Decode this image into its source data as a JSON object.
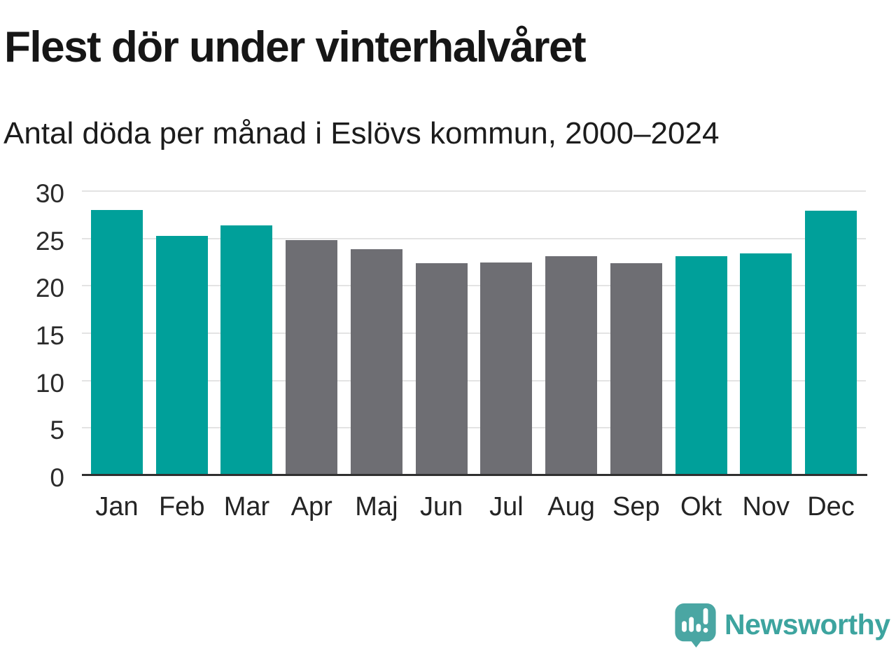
{
  "header": {
    "title": "Flest dör under vinterhalvåret",
    "subtitle": "Antal döda per månad i Eslövs kommun, 2000–2024"
  },
  "chart_data": {
    "type": "bar",
    "title": "Flest dör under vinterhalvåret",
    "subtitle": "Antal döda per månad i Eslövs kommun, 2000–2024",
    "categories": [
      "Jan",
      "Feb",
      "Mar",
      "Apr",
      "Maj",
      "Jun",
      "Jul",
      "Aug",
      "Sep",
      "Okt",
      "Nov",
      "Dec"
    ],
    "values": [
      28.0,
      25.3,
      26.4,
      24.8,
      23.9,
      22.4,
      22.5,
      23.1,
      22.4,
      23.1,
      23.4,
      27.9
    ],
    "bar_colors": [
      "teal",
      "teal",
      "teal",
      "gray",
      "gray",
      "gray",
      "gray",
      "gray",
      "gray",
      "teal",
      "teal",
      "teal"
    ],
    "colors": {
      "teal": "#00a09a",
      "gray": "#6e6e73"
    },
    "ylim": [
      0,
      30
    ],
    "yticks": [
      0,
      5,
      10,
      15,
      20,
      25,
      30
    ],
    "grid": true,
    "legend_position": "none",
    "xlabel": "",
    "ylabel": ""
  },
  "footer": {
    "brand": "Newsworthy",
    "logo_icon": "bar-chart-speech-bubble-icon",
    "brand_color": "#3da49f",
    "icon_color": "#4aa6a3"
  }
}
